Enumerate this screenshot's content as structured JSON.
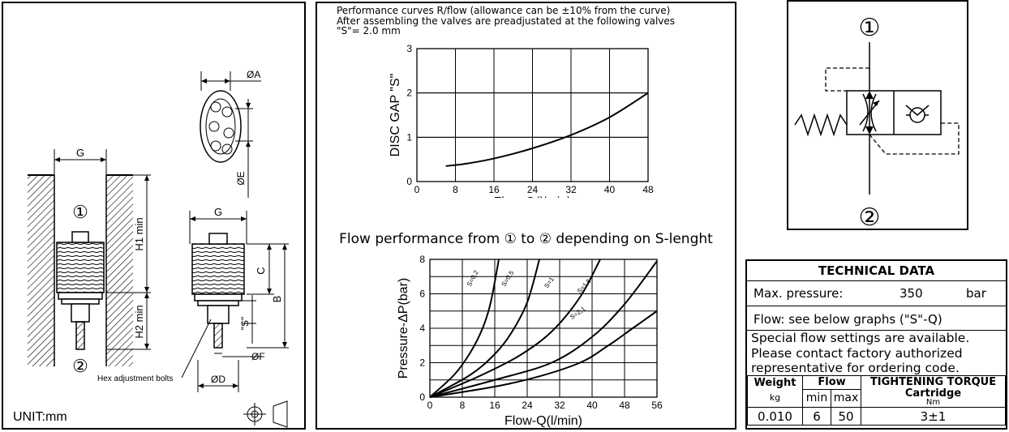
{
  "drawing": {
    "labels": {
      "g_left": "G",
      "g_right": "G",
      "phi_a": "ØA",
      "phi_e": "ØE",
      "phi_f": "ØF",
      "phi_d": "ØD",
      "h1": "H1 min",
      "h2": "H2 min",
      "c": "C",
      "b": "B",
      "s": "\"S\"",
      "port1": "①",
      "port2": "②",
      "hex_bolts": "Hex adjustment bolts",
      "unit": "UNIT:mm"
    }
  },
  "chart_top": {
    "note_lines": [
      "Performance curves R/flow (allowance can be ±10% from the curve)",
      "After assembling the valves are preadjustated at the following valves",
      "\"S\"= 2.0 mm"
    ]
  },
  "chart_bottom": {
    "heading": "Flow performance from ① to ② depending on S-lenght"
  },
  "chart_data": [
    {
      "type": "line",
      "xlabel": "Flow-Q(l/min)",
      "ylabel": "DISC GAP \"S\"",
      "xlim": [
        0,
        48
      ],
      "ylim": [
        0,
        3
      ],
      "x_ticks": [
        "0",
        "8",
        "16",
        "24",
        "32",
        "40",
        "48"
      ],
      "y_ticks": [
        "0",
        "1",
        "2",
        "3"
      ],
      "grid": true,
      "series": [
        {
          "x": [
            6,
            10,
            16,
            24,
            32,
            40,
            48
          ],
          "y": [
            0.35,
            0.4,
            0.52,
            0.75,
            1.05,
            1.45,
            2.0
          ]
        }
      ]
    },
    {
      "type": "line",
      "xlabel": "Flow-Q(l/min)",
      "ylabel": "Pressure-ΔP(bar)",
      "xlim": [
        0,
        56
      ],
      "ylim": [
        0,
        8
      ],
      "x_ticks": [
        "0",
        "8",
        "16",
        "24",
        "32",
        "40",
        "48",
        "56"
      ],
      "y_ticks": [
        "0",
        "2",
        "4",
        "6",
        "8"
      ],
      "grid": true,
      "series": [
        {
          "name": "S=0,2",
          "x": [
            0,
            6,
            10,
            13,
            15,
            17
          ],
          "y": [
            0,
            1.3,
            2.6,
            4.0,
            5.5,
            8.0
          ]
        },
        {
          "name": "S=0,5",
          "x": [
            0,
            10,
            16,
            20,
            24,
            27
          ],
          "y": [
            0,
            1.3,
            2.5,
            3.7,
            5.5,
            8.0
          ]
        },
        {
          "name": "S=1",
          "x": [
            0,
            12,
            22,
            30,
            37,
            42
          ],
          "y": [
            0,
            1.2,
            2.4,
            3.8,
            5.8,
            8.0
          ]
        },
        {
          "name": "S=1,5",
          "x": [
            0,
            16,
            30,
            40,
            48,
            56
          ],
          "y": [
            0,
            1.0,
            2.0,
            3.5,
            5.4,
            7.9
          ]
        },
        {
          "name": "S=2,1",
          "x": [
            0,
            20,
            36,
            44,
            50,
            56
          ],
          "y": [
            0,
            0.8,
            1.9,
            3.0,
            4.0,
            5.0
          ]
        }
      ]
    }
  ],
  "symbol": {
    "port1": "①",
    "port2": "②"
  },
  "tech": {
    "title": "TECHNICAL DATA",
    "pressure_label": "Max. pressure:",
    "pressure_value": "350",
    "pressure_unit": "bar",
    "flow_line": "Flow: see below graphs (\"S\"-Q)",
    "special_lines": [
      "Special flow settings are available.",
      "Please contact factory authorized",
      "representative for ordering code."
    ],
    "table": {
      "weight": "Weight",
      "weight_unit": "kg",
      "flow": "Flow",
      "min": "min",
      "max": "max",
      "torque": "TIGHTENING TORQUE",
      "cartridge": "Cartridge",
      "torque_unit": "Nm",
      "weight_value": "0.010",
      "flow_min": "6",
      "flow_max": "50",
      "torque_value": "3±1"
    }
  }
}
